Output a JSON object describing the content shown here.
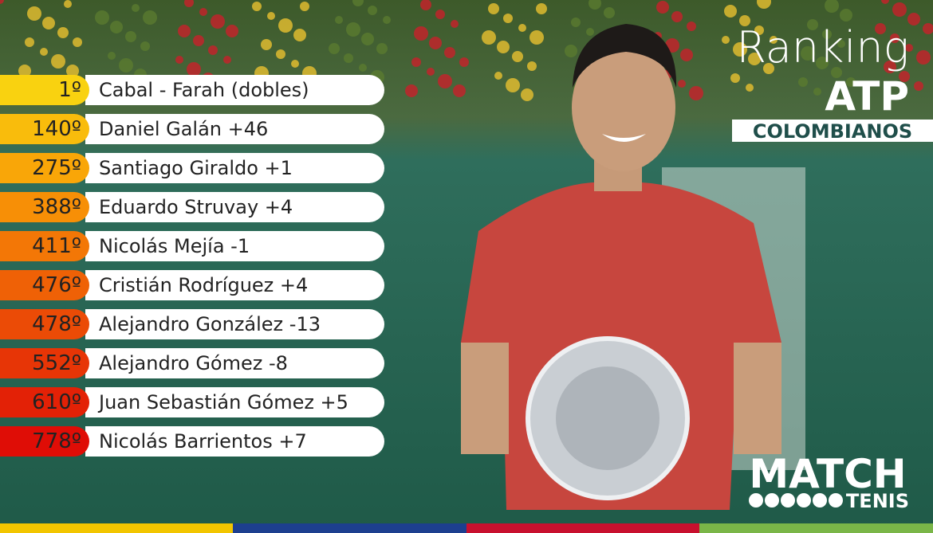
{
  "header": {
    "title": "Ranking",
    "subtitle": "ATP",
    "tag": "COLOMBIANOS"
  },
  "rankings": [
    {
      "rank": "1º",
      "name": "Cabal - Farah (dobles)"
    },
    {
      "rank": "140º",
      "name": "Daniel Galán +46"
    },
    {
      "rank": "275º",
      "name": "Santiago Giraldo +1"
    },
    {
      "rank": "388º",
      "name": "Eduardo Struvay +4"
    },
    {
      "rank": "411º",
      "name": "Nicolás Mejía -1"
    },
    {
      "rank": "476º",
      "name": "Cristián Rodríguez +4"
    },
    {
      "rank": "478º",
      "name": "Alejandro González -13"
    },
    {
      "rank": "552º",
      "name": "Alejandro Gómez -8"
    },
    {
      "rank": "610º",
      "name": "Juan Sebastián Gómez +5"
    },
    {
      "rank": "778º",
      "name": "Nicolás Barrientos +7"
    }
  ],
  "logo": {
    "main": "MATCH",
    "sub": "TENIS"
  }
}
